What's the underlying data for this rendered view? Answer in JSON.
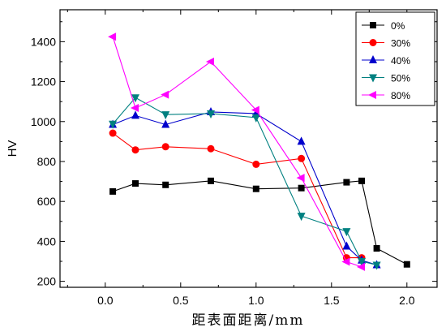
{
  "chart_data": {
    "type": "line",
    "title": "",
    "xlabel": "距表面距离/mm",
    "ylabel": "HV",
    "xlim": [
      -0.3,
      2.2
    ],
    "ylim": [
      170,
      1560
    ],
    "xticks": [
      0.0,
      0.5,
      1.0,
      1.5,
      2.0
    ],
    "xtick_labels": [
      "0.0",
      "0.5",
      "1.0",
      "1.5",
      "2.0"
    ],
    "yticks": [
      200,
      400,
      600,
      800,
      1000,
      1200,
      1400
    ],
    "ytick_labels": [
      "200",
      "400",
      "600",
      "800",
      "1000",
      "1200",
      "1400"
    ],
    "legend_position": "top-right",
    "grid": false,
    "series": [
      {
        "name": "0%",
        "color": "#000000",
        "marker": "square",
        "x": [
          0.05,
          0.2,
          0.4,
          0.7,
          1.0,
          1.3,
          1.6,
          1.7,
          1.8,
          2.0
        ],
        "y": [
          650,
          690,
          683,
          703,
          663,
          667,
          696,
          703,
          365,
          285
        ]
      },
      {
        "name": "30%",
        "color": "#ff0000",
        "marker": "circle",
        "x": [
          0.05,
          0.2,
          0.4,
          0.7,
          1.0,
          1.3,
          1.6,
          1.7
        ],
        "y": [
          942,
          858,
          874,
          864,
          786,
          815,
          318,
          318
        ]
      },
      {
        "name": "40%",
        "color": "#0000cc",
        "marker": "triangle-up",
        "x": [
          0.05,
          0.2,
          0.4,
          0.7,
          1.0,
          1.3,
          1.6,
          1.7,
          1.8
        ],
        "y": [
          985,
          1030,
          985,
          1048,
          1040,
          900,
          375,
          305,
          282
        ]
      },
      {
        "name": "50%",
        "color": "#008080",
        "marker": "triangle-down",
        "x": [
          0.05,
          0.2,
          0.4,
          0.7,
          1.0,
          1.3,
          1.6,
          1.7,
          1.8
        ],
        "y": [
          988,
          1120,
          1035,
          1040,
          1020,
          527,
          450,
          300,
          282
        ]
      },
      {
        "name": "80%",
        "color": "#ff00ff",
        "marker": "triangle-left",
        "x": [
          0.05,
          0.2,
          0.4,
          0.7,
          1.0,
          1.3,
          1.6,
          1.7
        ],
        "y": [
          1425,
          1068,
          1135,
          1300,
          1058,
          718,
          298,
          272
        ]
      }
    ]
  }
}
